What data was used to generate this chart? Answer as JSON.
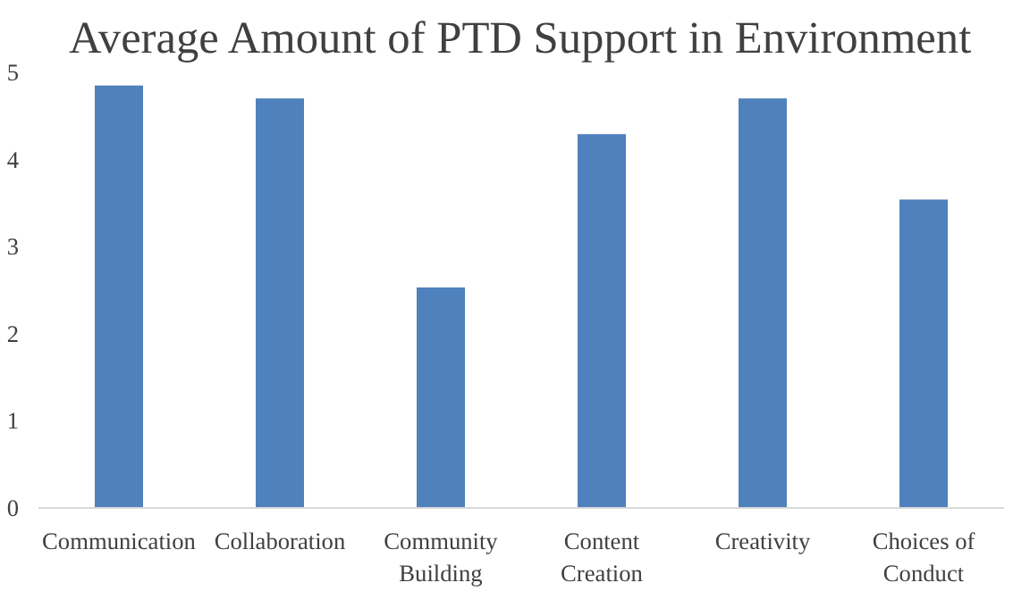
{
  "chart_data": {
    "type": "bar",
    "title": "Average Amount of PTD Support in Environment",
    "categories": [
      "Communication",
      "Collaboration",
      "Community Building",
      "Content Creation",
      "Creativity",
      "Choices of Conduct"
    ],
    "values": [
      4.85,
      4.7,
      2.53,
      4.29,
      4.7,
      3.54
    ],
    "color": "#4f81bd",
    "ylim": [
      0,
      5
    ],
    "yticks": [
      0,
      1,
      2,
      3,
      4,
      5
    ],
    "grid": false
  }
}
